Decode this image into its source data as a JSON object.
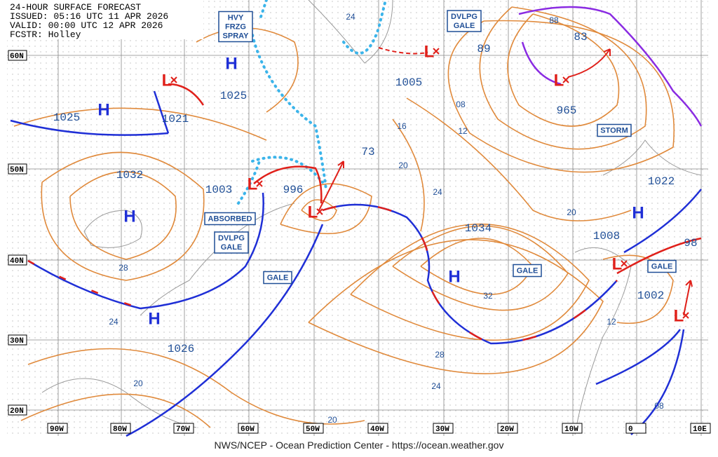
{
  "header": {
    "title": "24-HOUR SURFACE FORECAST",
    "issued": "ISSUED: 05:16 UTC 11 APR 2026",
    "valid": "VALID: 00:00 UTC 12 APR 2026",
    "forecaster": "FCSTR: Holley"
  },
  "footer": "NWS/NCEP - Ocean Prediction Center - https://ocean.weather.gov",
  "lat_labels": [
    "60N",
    "50N",
    "40N",
    "30N",
    "20N"
  ],
  "lon_labels": [
    "90W",
    "80W",
    "70W",
    "60W",
    "50W",
    "40W",
    "30W",
    "20W",
    "10W",
    "0",
    "10E"
  ],
  "highs": [
    "H",
    "H",
    "H",
    "H",
    "H",
    "H"
  ],
  "lows": [
    "L",
    "L",
    "L",
    "L",
    "L",
    "L",
    "L"
  ],
  "pressures": [
    "1025",
    "1021",
    "1032",
    "1025",
    "1003",
    "996",
    "73",
    "1005",
    "89",
    "83",
    "965",
    "1034",
    "1022",
    "1008",
    "98",
    "1002",
    "1026"
  ],
  "isobar_labels": [
    "24",
    "16",
    "20",
    "24",
    "08",
    "12",
    "20",
    "28",
    "24",
    "32",
    "28",
    "24",
    "20",
    "20",
    "12",
    "08",
    "88"
  ],
  "warnings": [
    [
      "HVY",
      "FRZG",
      "SPRAY"
    ],
    [
      "DVLPG",
      "GALE"
    ],
    [
      "ABSORBED"
    ],
    [
      "DVLPG",
      "GALE"
    ],
    [
      "GALE"
    ],
    [
      "GALE"
    ],
    [
      "GALE"
    ],
    [
      "STORM"
    ]
  ]
}
